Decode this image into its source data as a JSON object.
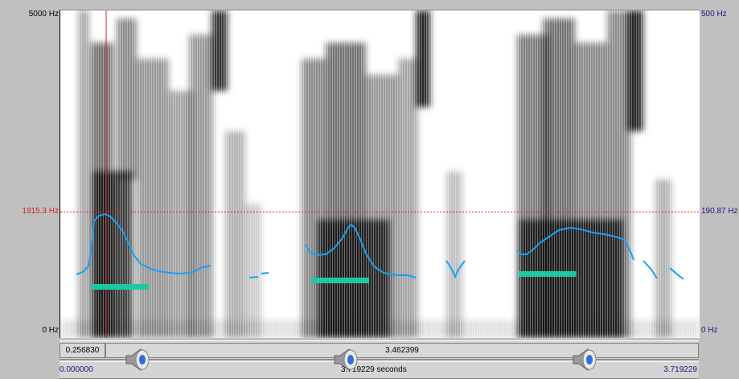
{
  "axis_left": {
    "top_label": "5000 Hz",
    "cursor_label": "1915.3 Hz",
    "bottom_label": "0 Hz"
  },
  "axis_right": {
    "top_label": "500 Hz",
    "cursor_label": "190.87 Hz",
    "bottom_label": "0 Hz"
  },
  "selection": {
    "start_segment": "0.256830",
    "main_segment": "3.462399"
  },
  "timeline": {
    "start": "0.000000",
    "total": "3.719229 seconds",
    "end": "3.719229"
  },
  "colors": {
    "pitch": "#1aa0f0",
    "formant_marker": "#1ec8a0",
    "cursor": "#e02020",
    "spectrogram": "#000000"
  },
  "icons": [
    "speaker-icon",
    "speaker-icon",
    "speaker-icon"
  ]
}
